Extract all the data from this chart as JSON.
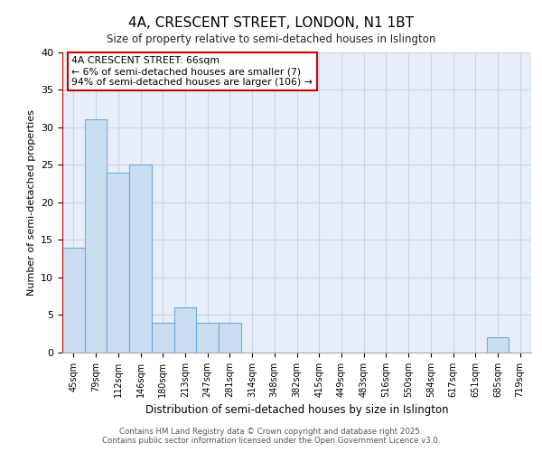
{
  "title": "4A, CRESCENT STREET, LONDON, N1 1BT",
  "subtitle": "Size of property relative to semi-detached houses in Islington",
  "xlabel": "Distribution of semi-detached houses by size in Islington",
  "ylabel": "Number of semi-detached properties",
  "categories": [
    "45sqm",
    "79sqm",
    "112sqm",
    "146sqm",
    "180sqm",
    "213sqm",
    "247sqm",
    "281sqm",
    "314sqm",
    "348sqm",
    "382sqm",
    "415sqm",
    "449sqm",
    "483sqm",
    "516sqm",
    "550sqm",
    "584sqm",
    "617sqm",
    "651sqm",
    "685sqm",
    "719sqm"
  ],
  "values": [
    14,
    31,
    24,
    25,
    4,
    6,
    4,
    4,
    0,
    0,
    0,
    0,
    0,
    0,
    0,
    0,
    0,
    0,
    0,
    2,
    0
  ],
  "bar_color": "#c9ddf0",
  "bar_edge_color": "#6aacde",
  "red_line_color": "#cc0000",
  "annotation_text": "4A CRESCENT STREET: 66sqm\n← 6% of semi-detached houses are smaller (7)\n94% of semi-detached houses are larger (106) →",
  "annotation_box_edge_color": "#cc0000",
  "ylim": [
    0,
    40
  ],
  "yticks": [
    0,
    5,
    10,
    15,
    20,
    25,
    30,
    35,
    40
  ],
  "grid_color": "#c8d4e8",
  "background_color": "#e8eef8",
  "footer_line1": "Contains HM Land Registry data © Crown copyright and database right 2025.",
  "footer_line2": "Contains public sector information licensed under the Open Government Licence v3.0."
}
